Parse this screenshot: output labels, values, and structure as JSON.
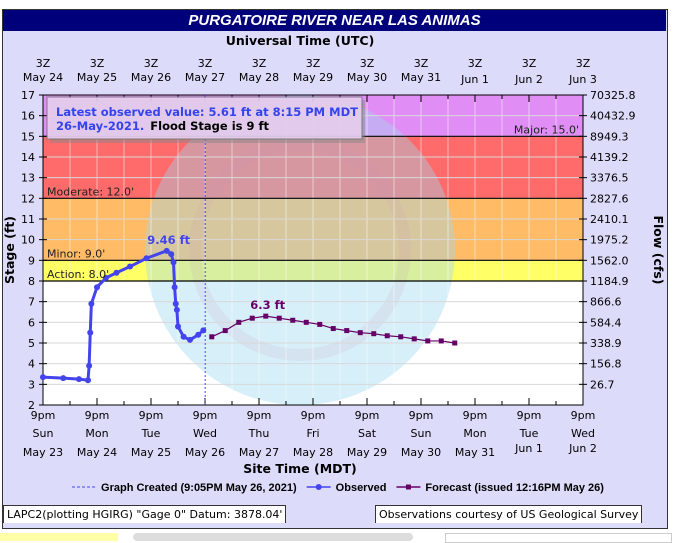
{
  "title": "PURGATOIRE RIVER NEAR LAS ANIMAS",
  "footer": {
    "left": "LAPC2(plotting HGIRG) \"Gage 0\" Datum: 3878.04'",
    "right": "Observations courtesy of US Geological Survey"
  },
  "tooltip": {
    "line1": "Latest observed value: 5.61 ft at 8:15 PM MDT",
    "line2a": "26-May-2021.",
    "line2b": "Flood Stage is 9 ft"
  },
  "watermark": "NOAA - U.S. DEPARTMENT OF COMMERCE",
  "chart_data": {
    "type": "line",
    "top_axis_title": "Universal Time (UTC)",
    "xlabel": "Site Time (MDT)",
    "ylabel": "Stage (ft)",
    "y2label": "Flow (cfs)",
    "ylim": [
      2,
      17
    ],
    "xlim": [
      "2021-05-23T21:00",
      "2021-06-02T21:00"
    ],
    "grid": true,
    "top_ticks": [
      [
        "3Z",
        "May 24"
      ],
      [
        "3Z",
        "May 25"
      ],
      [
        "3Z",
        "May 26"
      ],
      [
        "3Z",
        "May 27"
      ],
      [
        "3Z",
        "May 28"
      ],
      [
        "3Z",
        "May 29"
      ],
      [
        "3Z",
        "May 30"
      ],
      [
        "3Z",
        "May 31"
      ],
      [
        "3Z",
        "Jun  1"
      ],
      [
        "3Z",
        "Jun  2"
      ],
      [
        "3Z",
        "Jun  3"
      ]
    ],
    "bottom_ticks": [
      [
        "9pm",
        "Sun",
        "May 23"
      ],
      [
        "9pm",
        "Mon",
        "May 24"
      ],
      [
        "9pm",
        "Tue",
        "May 25"
      ],
      [
        "9pm",
        "Wed",
        "May 26"
      ],
      [
        "9pm",
        "Thu",
        "May 27"
      ],
      [
        "9pm",
        "Fri",
        "May 28"
      ],
      [
        "9pm",
        "Sat",
        "May 29"
      ],
      [
        "9pm",
        "Sun",
        "May 30"
      ],
      [
        "9pm",
        "Mon",
        "May 31"
      ],
      [
        "9pm",
        "Tue",
        "Jun 1"
      ],
      [
        "9pm",
        "Wed",
        "Jun 2"
      ]
    ],
    "y_ticks": [
      2,
      3,
      4,
      5,
      6,
      7,
      8,
      9,
      10,
      11,
      12,
      13,
      14,
      15,
      16,
      17
    ],
    "flow_ticks": [
      [
        17,
        "70325.8"
      ],
      [
        16,
        "40432.9"
      ],
      [
        15,
        "8949.3"
      ],
      [
        14,
        "4139.2"
      ],
      [
        13,
        "3376.5"
      ],
      [
        12,
        "2827.6"
      ],
      [
        11,
        "2410.1"
      ],
      [
        10,
        "1975.2"
      ],
      [
        9,
        "1562.0"
      ],
      [
        8,
        "1184.9"
      ],
      [
        7,
        "866.6"
      ],
      [
        6,
        "584.4"
      ],
      [
        5,
        "338.9"
      ],
      [
        4,
        "156.8"
      ],
      [
        3,
        "26.7"
      ]
    ],
    "flood_categories": [
      {
        "name": "Major",
        "label": "Major: 15.0'",
        "from": 15,
        "to": 17,
        "color": "#e08ef5"
      },
      {
        "name": "Moderate",
        "label": "Moderate: 12.0'",
        "from": 12,
        "to": 15,
        "color": "#ff6a6a"
      },
      {
        "name": "Minor",
        "label": "Minor: 9.0'",
        "from": 9,
        "to": 12,
        "color": "#ffbb66"
      },
      {
        "name": "Action",
        "label": "Action: 8.0'",
        "from": 8,
        "to": 9,
        "color": "#ffff66"
      }
    ],
    "graph_created": {
      "label": "Graph Created (9:05PM May 26, 2021)",
      "time": "2021-05-26T21:05"
    },
    "series": [
      {
        "name": "Observed",
        "color": "#4444ee",
        "peak_label": "9.46 ft",
        "points": [
          [
            "2021-05-23T21:00",
            3.35
          ],
          [
            "2021-05-24T06:00",
            3.3
          ],
          [
            "2021-05-24T13:00",
            3.25
          ],
          [
            "2021-05-24T17:00",
            3.2
          ],
          [
            "2021-05-24T17:30",
            3.9
          ],
          [
            "2021-05-24T18:00",
            5.5
          ],
          [
            "2021-05-24T18:30",
            6.9
          ],
          [
            "2021-05-24T21:00",
            7.7
          ],
          [
            "2021-05-25T01:00",
            8.15
          ],
          [
            "2021-05-25T05:40",
            8.4
          ],
          [
            "2021-05-25T11:40",
            8.7
          ],
          [
            "2021-05-25T19:00",
            9.1
          ],
          [
            "2021-05-26T04:00",
            9.46
          ],
          [
            "2021-05-26T06:00",
            9.3
          ],
          [
            "2021-05-26T07:00",
            8.9
          ],
          [
            "2021-05-26T07:30",
            7.7
          ],
          [
            "2021-05-26T08:00",
            6.9
          ],
          [
            "2021-05-26T08:30",
            6.6
          ],
          [
            "2021-05-26T09:00",
            5.8
          ],
          [
            "2021-05-26T11:30",
            5.3
          ],
          [
            "2021-05-26T14:20",
            5.15
          ],
          [
            "2021-05-26T18:00",
            5.4
          ],
          [
            "2021-05-26T20:15",
            5.61
          ]
        ]
      },
      {
        "name": "Forecast (issued 12:16PM May 26)",
        "color": "#660066",
        "peak_label": "6.3 ft",
        "points": [
          [
            "2021-05-27T00:00",
            5.3
          ],
          [
            "2021-05-27T06:00",
            5.6
          ],
          [
            "2021-05-27T12:00",
            6.0
          ],
          [
            "2021-05-27T18:00",
            6.2
          ],
          [
            "2021-05-28T00:00",
            6.3
          ],
          [
            "2021-05-28T06:00",
            6.2
          ],
          [
            "2021-05-28T12:00",
            6.1
          ],
          [
            "2021-05-28T18:00",
            6.0
          ],
          [
            "2021-05-29T00:00",
            5.9
          ],
          [
            "2021-05-29T06:00",
            5.7
          ],
          [
            "2021-05-29T12:00",
            5.6
          ],
          [
            "2021-05-29T18:00",
            5.5
          ],
          [
            "2021-05-30T00:00",
            5.45
          ],
          [
            "2021-05-30T06:00",
            5.35
          ],
          [
            "2021-05-30T12:00",
            5.3
          ],
          [
            "2021-05-30T18:00",
            5.2
          ],
          [
            "2021-05-31T00:00",
            5.1
          ],
          [
            "2021-05-31T06:00",
            5.1
          ],
          [
            "2021-05-31T12:00",
            5.0
          ]
        ]
      }
    ]
  }
}
